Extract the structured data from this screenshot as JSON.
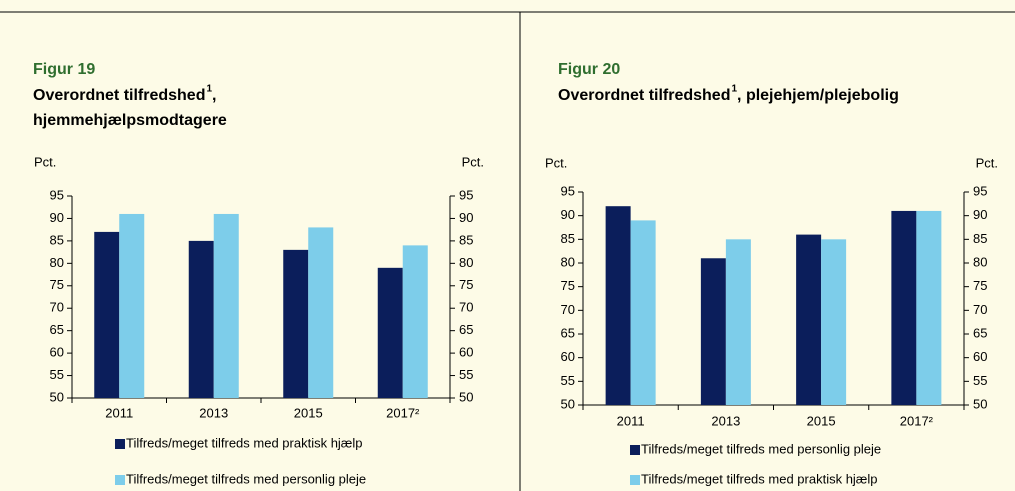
{
  "chart_data": [
    {
      "type": "bar",
      "figure": "Figur 19",
      "title_parts": [
        "Overordnet tilfredshed",
        "1",
        ",",
        "hjemmehjælpsmodtagere"
      ],
      "ylabel": "Pct.",
      "y2label": "Pct.",
      "categories": [
        "2011",
        "2013",
        "2015",
        "2017²"
      ],
      "series": [
        {
          "name": "Tilfreds/meget tilfreds med praktisk hjælp",
          "color": "#0b1e5b",
          "values": [
            87,
            85,
            83,
            79
          ]
        },
        {
          "name": "Tilfreds/meget tilfreds med personlig pleje",
          "color": "#7dcdea",
          "values": [
            91,
            91,
            88,
            84
          ]
        }
      ],
      "ylim": [
        50,
        95
      ],
      "yticks": [
        50,
        55,
        60,
        65,
        70,
        75,
        80,
        85,
        90,
        95
      ],
      "y2lim": [
        50,
        95
      ],
      "y2ticks": [
        50,
        55,
        60,
        65,
        70,
        75,
        80,
        85,
        90,
        95
      ]
    },
    {
      "type": "bar",
      "figure": "Figur 20",
      "title_parts": [
        "Overordnet tilfredshed",
        "1",
        ", plejehjem/plejebolig"
      ],
      "ylabel": "Pct.",
      "y2label": "Pct.",
      "categories": [
        "2011",
        "2013",
        "2015",
        "2017²"
      ],
      "series": [
        {
          "name": "Tilfreds/meget tilfreds med personlig pleje",
          "color": "#0b1e5b",
          "values": [
            92,
            81,
            86,
            91
          ]
        },
        {
          "name": "Tilfreds/meget tilfreds med praktisk hjælp",
          "color": "#7dcdea",
          "values": [
            89,
            85,
            85,
            91
          ]
        }
      ],
      "ylim": [
        50,
        95
      ],
      "yticks": [
        50,
        55,
        60,
        65,
        70,
        75,
        80,
        85,
        90,
        95
      ],
      "y2lim": [
        50,
        95
      ],
      "y2ticks": [
        50,
        55,
        60,
        65,
        70,
        75,
        80,
        85,
        90,
        95
      ]
    }
  ]
}
